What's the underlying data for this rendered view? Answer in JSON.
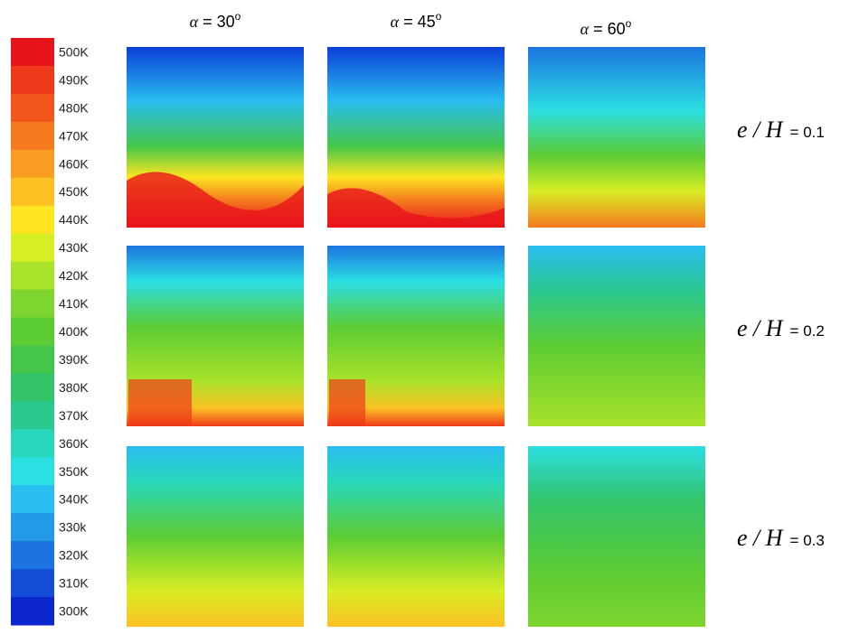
{
  "colorbar": {
    "levels": [
      {
        "label": "500K",
        "color": "#e8141b"
      },
      {
        "label": "490K",
        "color": "#ee3a1a"
      },
      {
        "label": "480K",
        "color": "#f2561c"
      },
      {
        "label": "470K",
        "color": "#f5791f"
      },
      {
        "label": "460K",
        "color": "#f99d22"
      },
      {
        "label": "450K",
        "color": "#fbc123"
      },
      {
        "label": "440K",
        "color": "#fde521"
      },
      {
        "label": "430K",
        "color": "#d7ed24"
      },
      {
        "label": "420K",
        "color": "#a9e22a"
      },
      {
        "label": "410K",
        "color": "#7fd52f"
      },
      {
        "label": "400K",
        "color": "#5ccc34"
      },
      {
        "label": "390K",
        "color": "#45c64a"
      },
      {
        "label": "380K",
        "color": "#33c46a"
      },
      {
        "label": "370K",
        "color": "#2bc890"
      },
      {
        "label": "360K",
        "color": "#28d7bb"
      },
      {
        "label": "350K",
        "color": "#2bdfe2"
      },
      {
        "label": "340K",
        "color": "#29bdf0"
      },
      {
        "label": "330k",
        "color": "#239ae8"
      },
      {
        "label": "320K",
        "color": "#1c74e0"
      },
      {
        "label": "310K",
        "color": "#144ed8"
      },
      {
        "label": "300K",
        "color": "#0b26cc"
      }
    ]
  },
  "columns": [
    {
      "symbol": "α",
      "text": "= 30",
      "sup": "o"
    },
    {
      "symbol": "α",
      "text": "= 45",
      "sup": "o"
    },
    {
      "symbol": "α",
      "text": "= 60",
      "sup": "o"
    }
  ],
  "rows": [
    {
      "ratio": "e / H",
      "value": "= 0.1"
    },
    {
      "ratio": "e / H",
      "value": "= 0.2"
    },
    {
      "ratio": "e / H",
      "value": "= 0.3"
    }
  ]
}
